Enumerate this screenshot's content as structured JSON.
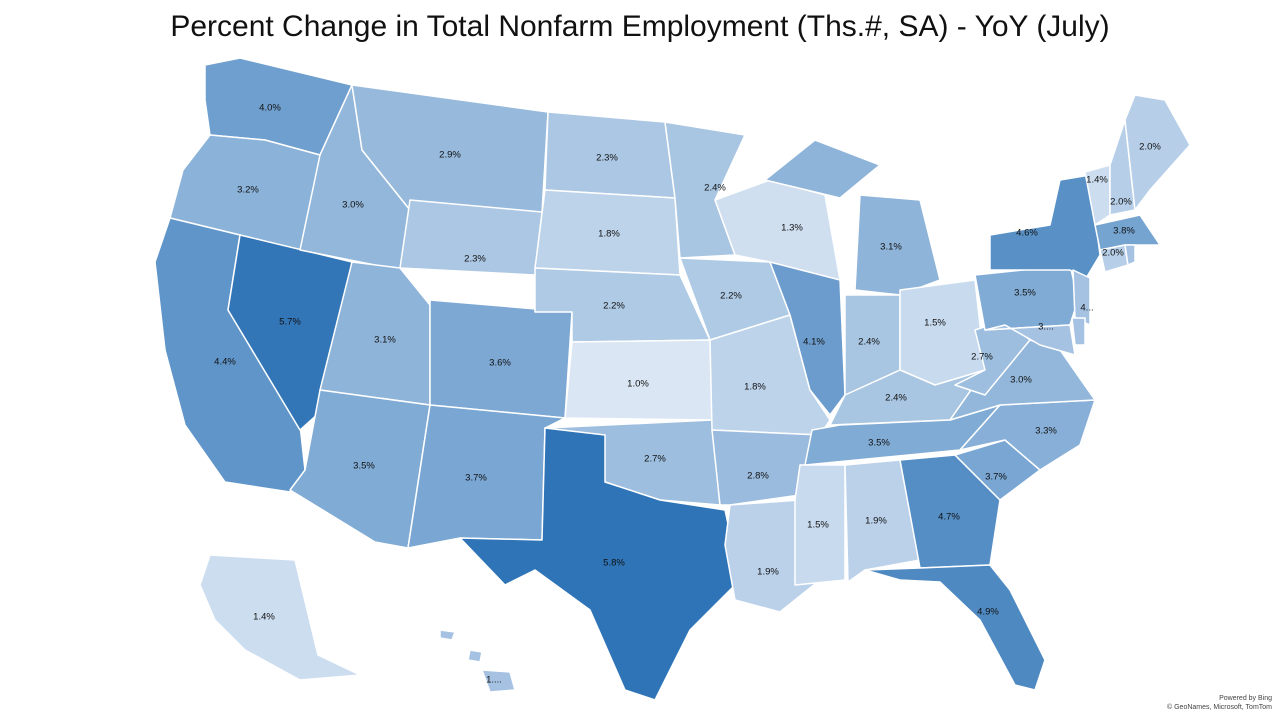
{
  "title": "Percent Change in Total Nonfarm Employment (Ths.#, SA) - YoY (July)",
  "credit": {
    "line1": "Powered by Bing",
    "line2": "© GeoNames, Microsoft, TomTom"
  },
  "colors": {
    "low": "#dae6f4",
    "high": "#2e74b7",
    "border": "#ffffff"
  },
  "chart_data": {
    "type": "choropleth",
    "metric": "Percent Change in Total Nonfarm Employment (Ths.#, SA) - YoY (July)",
    "states": [
      {
        "id": "WA",
        "value": 4.0,
        "label": "4.0%"
      },
      {
        "id": "OR",
        "value": 3.2,
        "label": "3.2%"
      },
      {
        "id": "CA",
        "value": 4.4,
        "label": "4.4%"
      },
      {
        "id": "NV",
        "value": 5.7,
        "label": "5.7%"
      },
      {
        "id": "ID",
        "value": 3.0,
        "label": "3.0%"
      },
      {
        "id": "MT",
        "value": 2.9,
        "label": "2.9%"
      },
      {
        "id": "WY",
        "value": 2.3,
        "label": "2.3%"
      },
      {
        "id": "UT",
        "value": 3.1,
        "label": "3.1%"
      },
      {
        "id": "CO",
        "value": 3.6,
        "label": "3.6%"
      },
      {
        "id": "AZ",
        "value": 3.5,
        "label": "3.5%"
      },
      {
        "id": "NM",
        "value": 3.7,
        "label": "3.7%"
      },
      {
        "id": "ND",
        "value": 2.3,
        "label": "2.3%"
      },
      {
        "id": "SD",
        "value": 1.8,
        "label": "1.8%"
      },
      {
        "id": "NE",
        "value": 2.2,
        "label": "2.2%"
      },
      {
        "id": "KS",
        "value": 1.0,
        "label": "1.0%"
      },
      {
        "id": "OK",
        "value": 2.7,
        "label": "2.7%"
      },
      {
        "id": "TX",
        "value": 5.8,
        "label": "5.8%"
      },
      {
        "id": "MN",
        "value": 2.4,
        "label": "2.4%"
      },
      {
        "id": "IA",
        "value": 2.2,
        "label": "2.2%"
      },
      {
        "id": "MO",
        "value": 1.8,
        "label": "1.8%"
      },
      {
        "id": "AR",
        "value": 2.8,
        "label": "2.8%"
      },
      {
        "id": "LA",
        "value": 1.9,
        "label": "1.9%"
      },
      {
        "id": "WI",
        "value": 1.3,
        "label": "1.3%"
      },
      {
        "id": "IL",
        "value": 4.1,
        "label": "4.1%"
      },
      {
        "id": "MI",
        "value": 3.1,
        "label": "3.1%"
      },
      {
        "id": "IN",
        "value": 2.4,
        "label": "2.4%"
      },
      {
        "id": "OH",
        "value": 1.5,
        "label": "1.5%"
      },
      {
        "id": "KY",
        "value": 2.4,
        "label": "2.4%"
      },
      {
        "id": "TN",
        "value": 3.5,
        "label": "3.5%"
      },
      {
        "id": "MS",
        "value": 1.5,
        "label": "1.5%"
      },
      {
        "id": "AL",
        "value": 1.9,
        "label": "1.9%"
      },
      {
        "id": "GA",
        "value": 4.7,
        "label": "4.7%"
      },
      {
        "id": "FL",
        "value": 4.9,
        "label": "4.9%"
      },
      {
        "id": "SC",
        "value": 3.7,
        "label": "3.7%"
      },
      {
        "id": "NC",
        "value": 3.3,
        "label": "3.3%"
      },
      {
        "id": "VA",
        "value": 3.0,
        "label": "3.0%"
      },
      {
        "id": "WV",
        "value": 2.7,
        "label": "2.7%"
      },
      {
        "id": "PA",
        "value": 3.5,
        "label": "3.5%"
      },
      {
        "id": "NY",
        "value": 4.6,
        "label": "4.6%"
      },
      {
        "id": "VT",
        "value": 1.4,
        "label": "1.4%"
      },
      {
        "id": "NH",
        "value": 2.0,
        "label": "2.0%"
      },
      {
        "id": "ME",
        "value": 2.0,
        "label": "2.0%"
      },
      {
        "id": "MA",
        "value": 3.8,
        "label": "3.8%"
      },
      {
        "id": "CT",
        "value": 2.0,
        "label": "2.0%"
      },
      {
        "id": "RI",
        "value": null,
        "label": ""
      },
      {
        "id": "NJ",
        "value": null,
        "label": "4..."
      },
      {
        "id": "DE",
        "value": null,
        "label": ""
      },
      {
        "id": "MD",
        "value": null,
        "label": "3...."
      },
      {
        "id": "AK",
        "value": 1.4,
        "label": "1.4%"
      },
      {
        "id": "HI",
        "value": null,
        "label": "1...."
      }
    ]
  }
}
